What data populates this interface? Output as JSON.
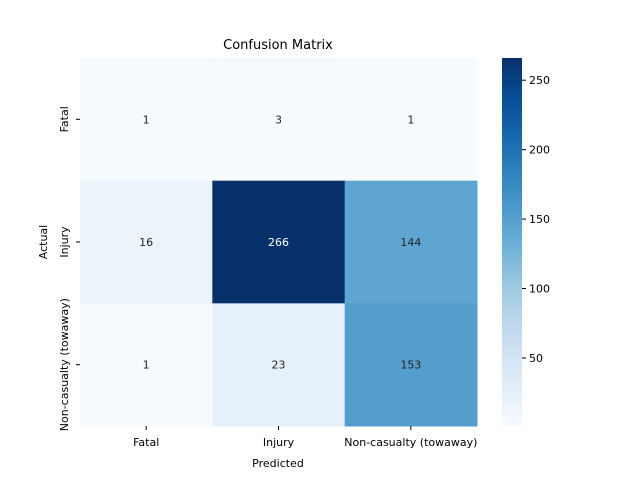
{
  "chart_data": {
    "type": "heatmap",
    "title": "Confusion Matrix",
    "xlabel": "Predicted",
    "ylabel": "Actual",
    "x_categories": [
      "Fatal",
      "Injury",
      "Non-casualty (towaway)"
    ],
    "y_categories": [
      "Fatal",
      "Injury",
      "Non-casualty (towaway)"
    ],
    "values": [
      [
        1,
        3,
        1
      ],
      [
        16,
        266,
        144
      ],
      [
        1,
        23,
        153
      ]
    ],
    "colorbar": {
      "min": 1,
      "max": 266,
      "ticks": [
        50,
        100,
        150,
        200,
        250
      ],
      "colormap": "Blues"
    }
  }
}
